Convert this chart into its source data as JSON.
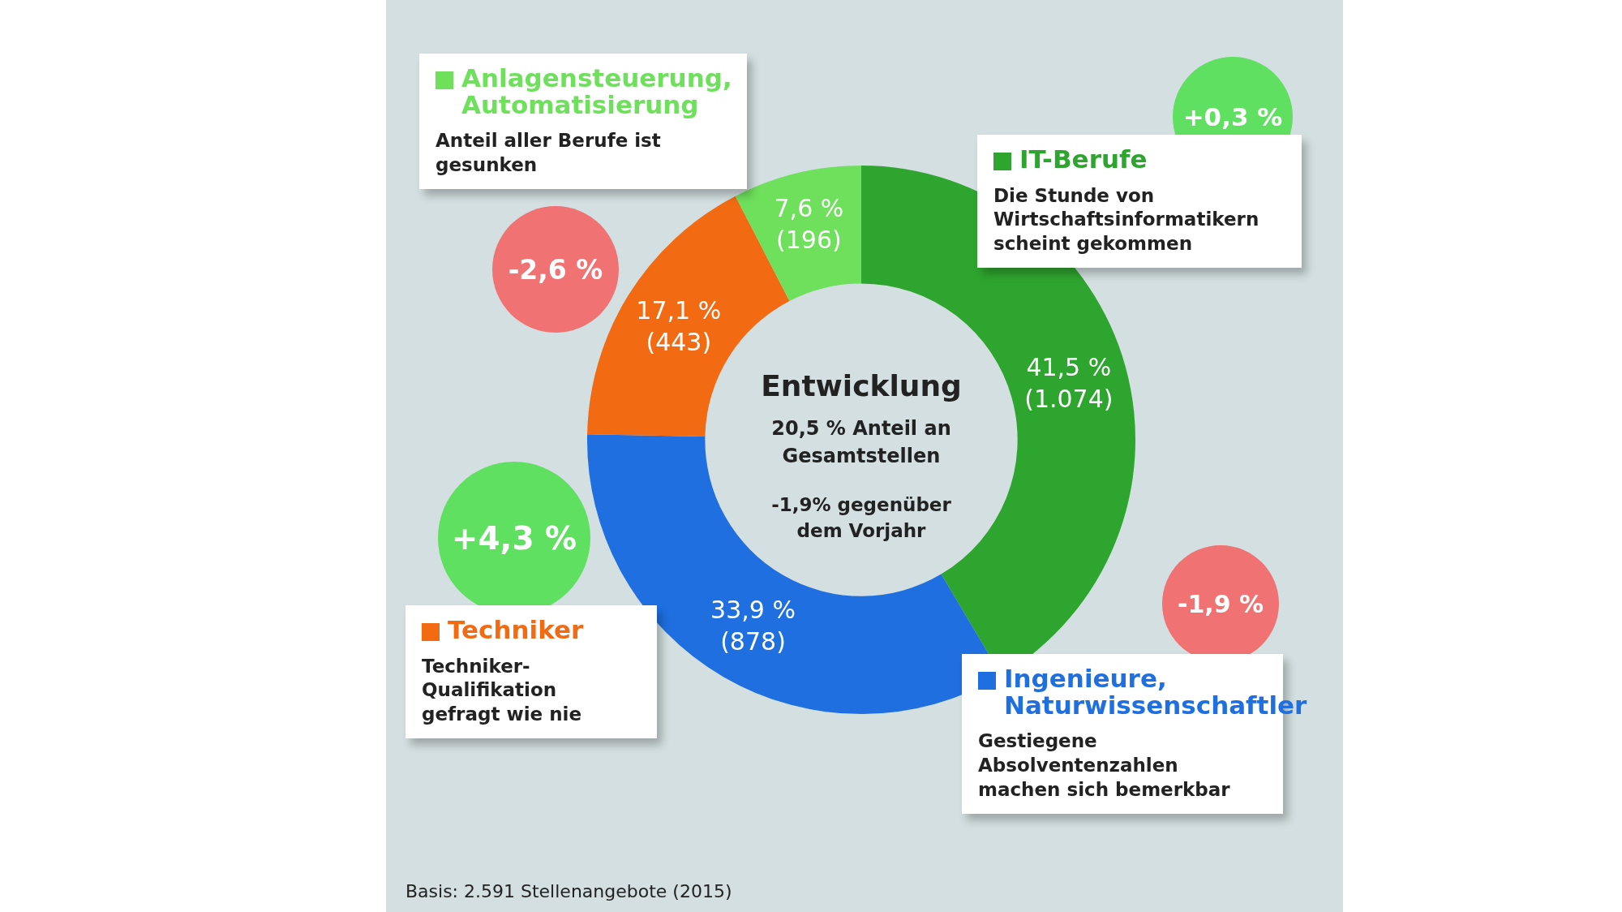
{
  "chart_data": {
    "type": "donut",
    "categories": [
      "IT-Berufe",
      "Ingenieure, Naturwissenschaftler",
      "Techniker",
      "Anlagensteuerung, Automatisierung"
    ],
    "values": [
      41.5,
      33.9,
      17.1,
      7.6
    ],
    "colors": [
      "#2ea52e",
      "#1f6fe0",
      "#f26b12",
      "#6fe05c"
    ],
    "value_labels": [
      "41,5 % (1.074)",
      "33,9 % (878)",
      "17,1 % (443)",
      "7,6 % (196)"
    ],
    "annotations": [
      "Entwicklung",
      "20,5 % Anteil an Gesamtstellen",
      "-1,9% gegenüber dem Vorjahr",
      "Die Stunde von Wirtschaftsinformatikern scheint gekommen",
      "Gestiegene Absolventenzahlen machen sich bemerkbar",
      "Techniker-Qualifikation gefragt wie nie",
      "Anteil aller Berufe ist gesunken",
      "+0,3 %",
      "-1,9 %",
      "+4,3 %",
      "-2,6 %",
      "Basis: 2.591 Stellenangebote (2015)"
    ],
    "legend": true
  }
}
